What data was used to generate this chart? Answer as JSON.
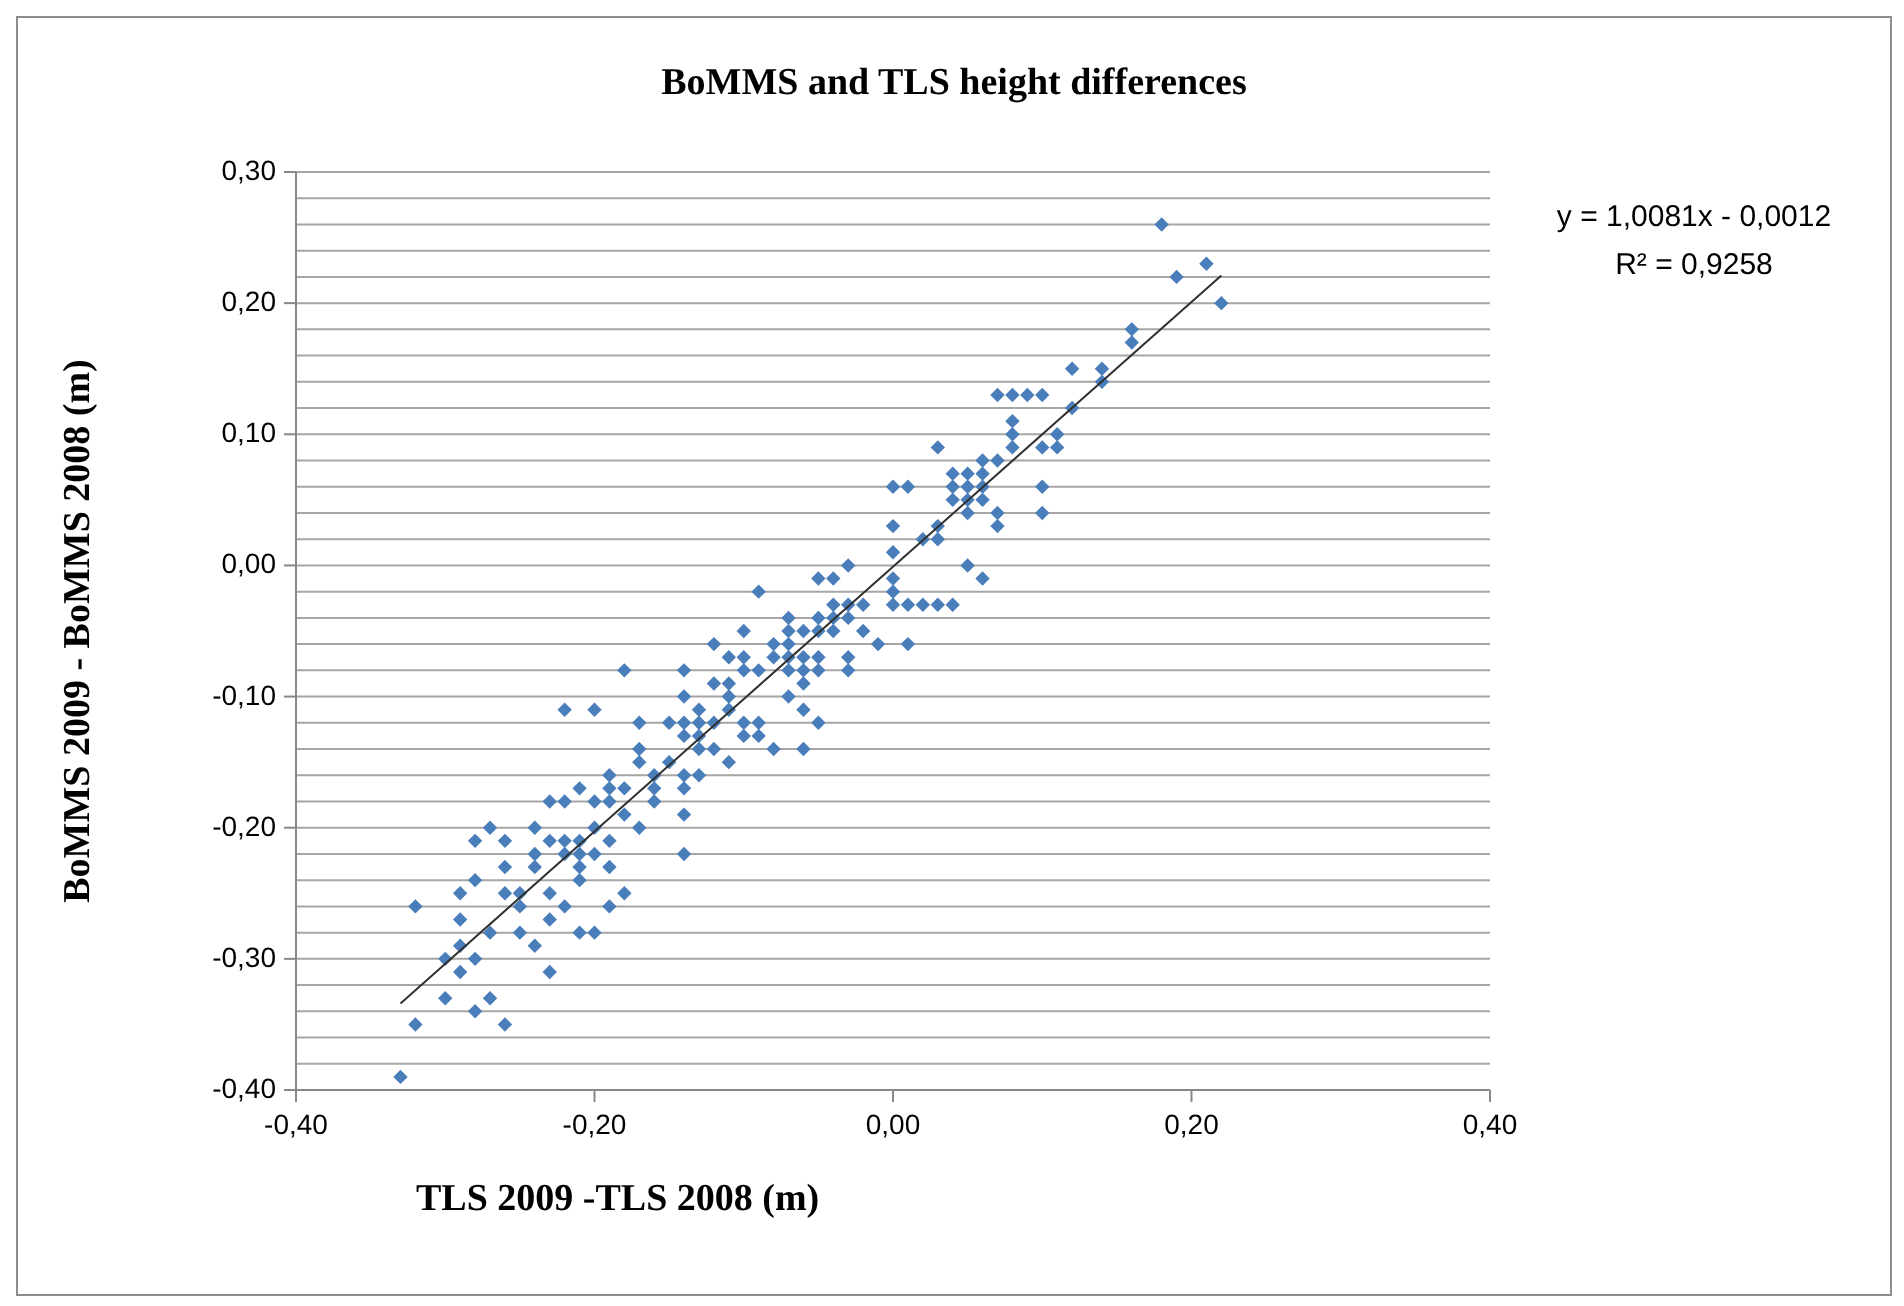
{
  "chart_data": {
    "type": "scatter",
    "title": "BoMMS and TLS height differences",
    "xlabel": "TLS 2009 -TLS 2008 (m)",
    "ylabel": "BoMMS 2009 -  BoMMS 2008 (m)",
    "xlim": [
      -0.4,
      0.4
    ],
    "xticks": [
      {
        "value": -0.4,
        "label": "-0,40"
      },
      {
        "value": -0.2,
        "label": "-0,20"
      },
      {
        "value": 0,
        "label": "0,00"
      },
      {
        "value": 0.2,
        "label": "0,20"
      },
      {
        "value": 0.4,
        "label": "0,40"
      }
    ],
    "ylim": [
      -0.4,
      0.3
    ],
    "yticks": [
      {
        "value": -0.4,
        "label": "-0,40"
      },
      {
        "value": -0.38,
        "label": null
      },
      {
        "value": -0.36,
        "label": null
      },
      {
        "value": -0.34,
        "label": null
      },
      {
        "value": -0.32,
        "label": null
      },
      {
        "value": -0.3,
        "label": "-0,30"
      },
      {
        "value": -0.28,
        "label": null
      },
      {
        "value": -0.26,
        "label": null
      },
      {
        "value": -0.24,
        "label": null
      },
      {
        "value": -0.22,
        "label": null
      },
      {
        "value": -0.2,
        "label": "-0,20"
      },
      {
        "value": -0.18,
        "label": null
      },
      {
        "value": -0.16,
        "label": null
      },
      {
        "value": -0.14,
        "label": null
      },
      {
        "value": -0.12,
        "label": null
      },
      {
        "value": -0.1,
        "label": "-0,10"
      },
      {
        "value": -0.08,
        "label": null
      },
      {
        "value": -0.06,
        "label": null
      },
      {
        "value": -0.04,
        "label": null
      },
      {
        "value": -0.02,
        "label": null
      },
      {
        "value": 0,
        "label": "0,00"
      },
      {
        "value": 0.02,
        "label": null
      },
      {
        "value": 0.04,
        "label": null
      },
      {
        "value": 0.06,
        "label": null
      },
      {
        "value": 0.08,
        "label": null
      },
      {
        "value": 0.1,
        "label": "0,10"
      },
      {
        "value": 0.12,
        "label": null
      },
      {
        "value": 0.14,
        "label": null
      },
      {
        "value": 0.16,
        "label": null
      },
      {
        "value": 0.18,
        "label": null
      },
      {
        "value": 0.2,
        "label": "0,20"
      },
      {
        "value": 0.22,
        "label": null
      },
      {
        "value": 0.24,
        "label": null
      },
      {
        "value": 0.26,
        "label": null
      },
      {
        "value": 0.28,
        "label": null
      },
      {
        "value": 0.3,
        "label": "0,30"
      }
    ],
    "grid": "y",
    "marker": "diamond",
    "annotations": [
      "y = 1,0081x - 0,0012",
      "R² = 0,9258"
    ],
    "series": [
      {
        "color": "#4a7ebb",
        "x": [
          -0.18,
          -0.22,
          -0.2,
          -0.17,
          -0.15,
          -0.17,
          -0.17,
          -0.15,
          -0.19,
          -0.19,
          -0.18,
          -0.19,
          -0.2,
          -0.22,
          -0.23,
          -0.21,
          -0.16,
          -0.16,
          -0.16,
          -0.18,
          -0.17,
          -0.24,
          -0.27,
          -0.28,
          -0.26,
          -0.23,
          -0.22,
          -0.21,
          -0.19,
          -0.2,
          -0.24,
          -0.22,
          -0.21,
          -0.2,
          -0.26,
          -0.24,
          -0.21,
          -0.19,
          -0.28,
          -0.21,
          -0.29,
          -0.26,
          -0.25,
          -0.23,
          -0.18,
          -0.32,
          -0.25,
          -0.22,
          -0.19,
          -0.29,
          -0.23,
          -0.27,
          -0.25,
          -0.21,
          -0.2,
          -0.29,
          -0.24,
          -0.3,
          -0.28,
          -0.29,
          -0.23,
          -0.3,
          -0.27,
          -0.28,
          -0.32,
          -0.26,
          -0.33,
          -0.03,
          -0.05,
          -0.04,
          -0.09,
          -0.04,
          -0.03,
          -0.07,
          -0.05,
          -0.04,
          -0.03,
          -0.1,
          -0.07,
          -0.06,
          -0.05,
          -0.04,
          -0.02,
          -0.12,
          -0.08,
          -0.07,
          -0.11,
          -0.1,
          -0.08,
          -0.07,
          -0.06,
          -0.05,
          -0.03,
          -0.14,
          -0.1,
          -0.09,
          -0.07,
          -0.06,
          -0.05,
          -0.03,
          -0.12,
          -0.11,
          -0.06,
          -0.14,
          -0.11,
          -0.07,
          -0.13,
          -0.11,
          -0.06,
          -0.14,
          -0.13,
          -0.12,
          -0.1,
          -0.09,
          -0.05,
          -0.14,
          -0.13,
          -0.1,
          -0.09,
          -0.13,
          -0.12,
          -0.08,
          -0.06,
          -0.11,
          -0.14,
          -0.13,
          -0.14,
          -0.14,
          -0.14,
          0.07,
          0.08,
          0.09,
          0.1,
          0.08,
          0.08,
          0.08,
          0.1,
          0.03,
          0.06,
          0.07,
          0.04,
          0.05,
          0.06,
          0.04,
          0.05,
          0.06,
          0.0,
          0.01,
          0.1,
          0.04,
          0.05,
          0.06,
          0.05,
          0.07,
          0.1,
          0.07,
          0.03,
          0.0,
          0.02,
          0.03,
          0.0,
          0.05,
          0.0,
          0.06,
          0.0,
          0.0,
          0.01,
          0.02,
          0.03,
          0.04,
          -0.01,
          0.01,
          -0.02,
          0.18,
          0.19,
          0.21,
          0.22,
          0.16,
          0.16,
          0.12,
          0.14,
          0.14,
          0.12,
          0.11,
          0.11
        ],
        "values": [
          -0.08,
          -0.11,
          -0.11,
          -0.12,
          -0.12,
          -0.14,
          -0.15,
          -0.15,
          -0.16,
          -0.17,
          -0.17,
          -0.18,
          -0.18,
          -0.18,
          -0.18,
          -0.17,
          -0.16,
          -0.17,
          -0.18,
          -0.19,
          -0.2,
          -0.2,
          -0.2,
          -0.21,
          -0.21,
          -0.21,
          -0.21,
          -0.21,
          -0.21,
          -0.2,
          -0.22,
          -0.22,
          -0.22,
          -0.22,
          -0.23,
          -0.23,
          -0.23,
          -0.23,
          -0.24,
          -0.24,
          -0.25,
          -0.25,
          -0.25,
          -0.25,
          -0.25,
          -0.26,
          -0.26,
          -0.26,
          -0.26,
          -0.27,
          -0.27,
          -0.28,
          -0.28,
          -0.28,
          -0.28,
          -0.29,
          -0.29,
          -0.3,
          -0.3,
          -0.31,
          -0.31,
          -0.33,
          -0.33,
          -0.34,
          -0.35,
          -0.35,
          -0.39,
          0.0,
          -0.01,
          -0.01,
          -0.02,
          -0.03,
          -0.03,
          -0.04,
          -0.04,
          -0.04,
          -0.04,
          -0.05,
          -0.05,
          -0.05,
          -0.05,
          -0.05,
          -0.05,
          -0.06,
          -0.06,
          -0.06,
          -0.07,
          -0.07,
          -0.07,
          -0.07,
          -0.07,
          -0.07,
          -0.07,
          -0.08,
          -0.08,
          -0.08,
          -0.08,
          -0.08,
          -0.08,
          -0.08,
          -0.09,
          -0.09,
          -0.09,
          -0.1,
          -0.1,
          -0.1,
          -0.11,
          -0.11,
          -0.11,
          -0.12,
          -0.12,
          -0.12,
          -0.12,
          -0.12,
          -0.12,
          -0.13,
          -0.13,
          -0.13,
          -0.13,
          -0.14,
          -0.14,
          -0.14,
          -0.14,
          -0.15,
          -0.16,
          -0.16,
          -0.17,
          -0.19,
          -0.22,
          0.13,
          0.13,
          0.13,
          0.13,
          0.11,
          0.1,
          0.09,
          0.09,
          0.09,
          0.08,
          0.08,
          0.07,
          0.07,
          0.07,
          0.06,
          0.06,
          0.06,
          0.06,
          0.06,
          0.06,
          0.05,
          0.05,
          0.05,
          0.04,
          0.04,
          0.04,
          0.03,
          0.03,
          0.03,
          0.02,
          0.02,
          0.01,
          0.0,
          -0.01,
          -0.01,
          -0.02,
          -0.03,
          -0.03,
          -0.03,
          -0.03,
          -0.03,
          -0.06,
          -0.06,
          -0.03,
          0.26,
          0.22,
          0.23,
          0.2,
          0.18,
          0.17,
          0.15,
          0.15,
          0.14,
          0.12,
          0.1,
          0.09
        ]
      },
      {
        "type": "line",
        "marker": "none",
        "color": "#303030",
        "x": [
          -0.33,
          0.22
        ],
        "values": [
          -0.334,
          0.221
        ]
      }
    ]
  }
}
